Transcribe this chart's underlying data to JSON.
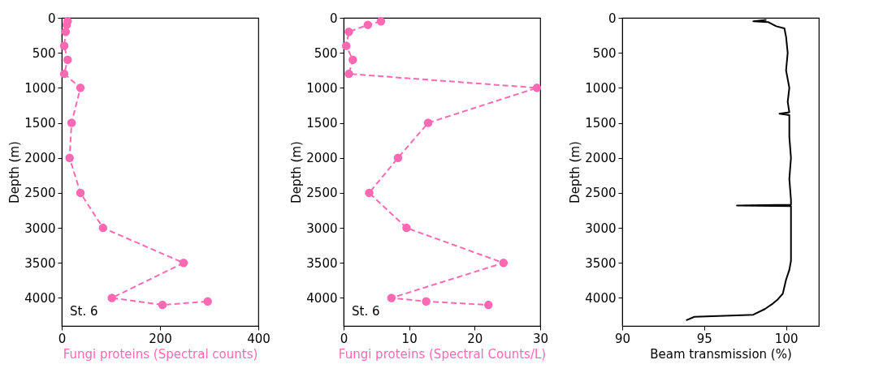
{
  "chart_data": [
    {
      "type": "line",
      "orientation": "horizontal",
      "xlabel": "Fungi proteins (Spectral counts)",
      "ylabel": "Depth (m)",
      "annotations": [
        "St. 6"
      ],
      "xlim": [
        0,
        400
      ],
      "xticks": [
        0,
        200,
        400
      ],
      "ylim": [
        4400,
        0
      ],
      "yticks": [
        0,
        500,
        1000,
        1500,
        2000,
        2500,
        3000,
        3500,
        4000
      ],
      "grid": false,
      "marker": "circle",
      "line_style": "dashed",
      "series": [
        {
          "color": "#ff69b4",
          "x": [
            50,
            100,
            200,
            400,
            600,
            800,
            1000,
            1500,
            2000,
            2500,
            3000,
            3500,
            4000,
            4100,
            4050
          ],
          "values": [
            12,
            10,
            8,
            5,
            12,
            5,
            38,
            20,
            16,
            38,
            84,
            248,
            102,
            205,
            297
          ]
        }
      ]
    },
    {
      "type": "line",
      "orientation": "horizontal",
      "xlabel": "Fungi proteins (Spectral Counts/L)",
      "ylabel": "Depth (m)",
      "annotations": [
        "St. 6"
      ],
      "xlim": [
        0,
        30
      ],
      "xticks": [
        0,
        10,
        20,
        30
      ],
      "ylim": [
        4400,
        0
      ],
      "yticks": [
        0,
        500,
        1000,
        1500,
        2000,
        2500,
        3000,
        3500,
        4000
      ],
      "grid": false,
      "marker": "circle",
      "line_style": "dashed",
      "series": [
        {
          "color": "#ff69b4",
          "x": [
            50,
            100,
            200,
            400,
            600,
            800,
            1000,
            1500,
            2000,
            2500,
            3000,
            3500,
            4000,
            4050,
            4100
          ],
          "values": [
            5.7,
            3.7,
            0.8,
            0.4,
            1.4,
            0.8,
            29.5,
            12.9,
            8.3,
            3.9,
            9.6,
            24.4,
            7.3,
            12.6,
            22.1
          ]
        }
      ]
    },
    {
      "type": "line",
      "orientation": "horizontal",
      "xlabel": "Beam transmission (%)",
      "ylabel": "Depth (m)",
      "xlim": [
        90,
        102
      ],
      "xticks": [
        90,
        95,
        100
      ],
      "ylim": [
        4400,
        0
      ],
      "yticks": [
        0,
        500,
        1000,
        1500,
        2000,
        2500,
        3000,
        3500,
        4000
      ],
      "grid": false,
      "marker": "none",
      "line_style": "solid",
      "series": [
        {
          "color": "#000000",
          "x": [
            30,
            50,
            60,
            120,
            150,
            270,
            500,
            750,
            1000,
            1200,
            1350,
            1370,
            1390,
            1700,
            2000,
            2300,
            2600,
            2670,
            2680,
            2690,
            3000,
            3470,
            3600,
            3740,
            3940,
            4020,
            4080,
            4160,
            4240,
            4250,
            4260,
            4270,
            4320
          ],
          "values": [
            98.8,
            98.0,
            98.9,
            99.4,
            99.9,
            100.0,
            100.1,
            100.0,
            100.2,
            100.1,
            100.2,
            99.6,
            100.2,
            100.2,
            100.3,
            100.2,
            100.3,
            100.3,
            97.0,
            100.3,
            100.3,
            100.3,
            100.2,
            100.0,
            99.8,
            99.5,
            99.2,
            98.7,
            98.0,
            97.0,
            95.5,
            94.4,
            93.9
          ]
        }
      ]
    }
  ]
}
